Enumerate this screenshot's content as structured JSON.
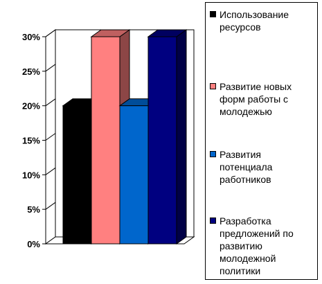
{
  "chart_data": {
    "type": "bar",
    "categories": [
      "Использование ресурсов",
      "Развитие новых форм работы с молодежью",
      "Развития потенциала работников",
      "Разработка предложений по развитию молодежной политики"
    ],
    "values": [
      20,
      30,
      20,
      30
    ],
    "colors": [
      "#000000",
      "#ff8080",
      "#0066cc",
      "#000080"
    ],
    "y_ticks": [
      "0%",
      "5%",
      "10%",
      "15%",
      "20%",
      "25%",
      "30%"
    ],
    "ylim": [
      0,
      30
    ],
    "grid": true,
    "legend_position": "right",
    "title": "",
    "xlabel": "",
    "ylabel": ""
  }
}
